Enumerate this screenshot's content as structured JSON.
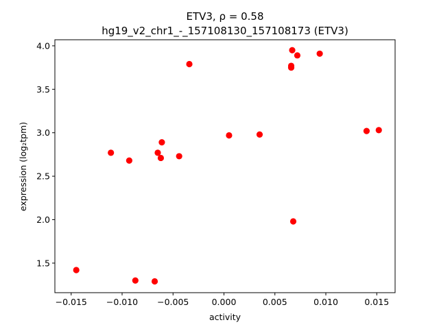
{
  "chart_data": {
    "type": "scatter",
    "title_line1": "ETV3, ρ = 0.58",
    "title_line2": "hg19_v2_chr1_-_157108130_157108173 (ETV3)",
    "xlabel": "activity",
    "ylabel": "expression (log₂tpm)",
    "xlim": [
      -0.0166,
      0.0168
    ],
    "ylim": [
      1.16,
      4.07
    ],
    "grid": false,
    "x_ticks": [
      {
        "value": -0.015,
        "label": "−0.015"
      },
      {
        "value": -0.01,
        "label": "−0.010"
      },
      {
        "value": -0.005,
        "label": "−0.005"
      },
      {
        "value": 0.0,
        "label": "0.000"
      },
      {
        "value": 0.005,
        "label": "0.005"
      },
      {
        "value": 0.01,
        "label": "0.010"
      },
      {
        "value": 0.015,
        "label": "0.015"
      }
    ],
    "y_ticks": [
      {
        "value": 1.5,
        "label": "1.5"
      },
      {
        "value": 2.0,
        "label": "2.0"
      },
      {
        "value": 2.5,
        "label": "2.5"
      },
      {
        "value": 3.0,
        "label": "3.0"
      },
      {
        "value": 3.5,
        "label": "3.5"
      },
      {
        "value": 4.0,
        "label": "4.0"
      }
    ],
    "marker_color": "#ff0000",
    "points": [
      {
        "x": -0.0145,
        "y": 1.42
      },
      {
        "x": -0.0111,
        "y": 2.77
      },
      {
        "x": -0.0093,
        "y": 2.68
      },
      {
        "x": -0.0087,
        "y": 1.3
      },
      {
        "x": -0.0068,
        "y": 1.29
      },
      {
        "x": -0.0065,
        "y": 2.77
      },
      {
        "x": -0.0062,
        "y": 2.71
      },
      {
        "x": -0.0061,
        "y": 2.89
      },
      {
        "x": -0.0044,
        "y": 2.73
      },
      {
        "x": -0.0034,
        "y": 3.79
      },
      {
        "x": 0.0005,
        "y": 2.97
      },
      {
        "x": 0.0035,
        "y": 2.98
      },
      {
        "x": 0.0066,
        "y": 3.75
      },
      {
        "x": 0.0066,
        "y": 3.77
      },
      {
        "x": 0.0067,
        "y": 3.95
      },
      {
        "x": 0.0068,
        "y": 1.98
      },
      {
        "x": 0.0072,
        "y": 3.89
      },
      {
        "x": 0.0094,
        "y": 3.91
      },
      {
        "x": 0.014,
        "y": 3.02
      },
      {
        "x": 0.0152,
        "y": 3.03
      }
    ]
  }
}
